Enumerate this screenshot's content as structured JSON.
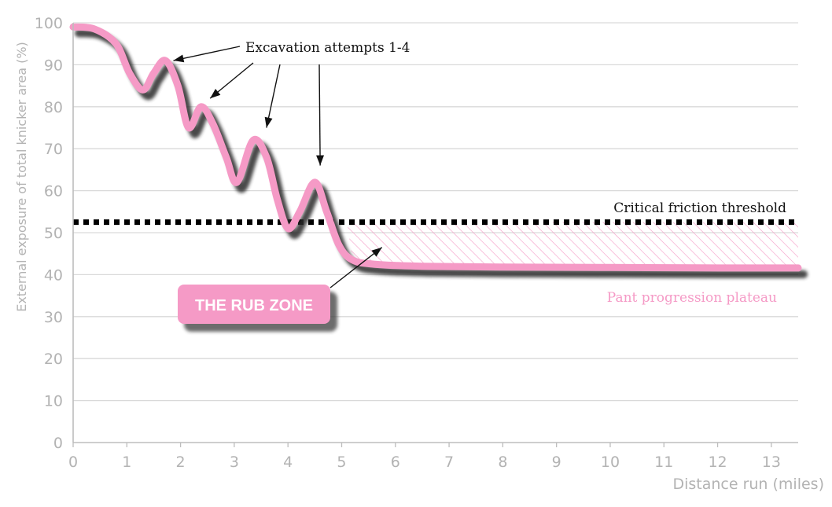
{
  "chart_data": {
    "type": "line",
    "title": "",
    "xlabel": "Distance run (miles)",
    "ylabel": "External exposure of total knicker area (%)",
    "xlim": [
      0,
      13.5
    ],
    "ylim": [
      0,
      100
    ],
    "x_ticks": [
      "0",
      "1",
      "2",
      "3",
      "4",
      "5",
      "6",
      "7",
      "8",
      "9",
      "10",
      "11",
      "12",
      "13"
    ],
    "y_ticks": [
      "0",
      "10",
      "20",
      "30",
      "40",
      "50",
      "60",
      "70",
      "80",
      "90",
      "100"
    ],
    "grid": "horizontal",
    "series": [
      {
        "color": "#f59ac6",
        "x": [
          0,
          0.4,
          0.8,
          1.05,
          1.3,
          1.5,
          1.72,
          1.95,
          2.15,
          2.38,
          2.6,
          2.85,
          3.05,
          3.35,
          3.6,
          3.8,
          4.0,
          4.22,
          4.5,
          4.72,
          4.95,
          5.2,
          5.6,
          6.5,
          8,
          10,
          12,
          13.5
        ],
        "y": [
          99,
          98.5,
          95,
          88,
          84,
          88,
          91,
          85,
          75,
          80,
          76,
          68,
          62,
          72,
          68,
          58,
          51,
          55,
          62,
          55,
          47,
          43.5,
          42.5,
          42,
          41.8,
          41.7,
          41.6,
          41.6
        ]
      }
    ],
    "threshold": {
      "label": "Critical friction threshold",
      "value": 52.5,
      "style": "dotted",
      "color": "#000000"
    },
    "plateau": {
      "label": "Pant progression plateau",
      "color": "#f59ac6"
    },
    "annotations": [
      {
        "text": "Excavation attempts 1-4",
        "targets": [
          [
            1.75,
            91
          ],
          [
            2.55,
            82
          ],
          [
            3.6,
            75
          ],
          [
            4.6,
            66
          ]
        ]
      },
      {
        "text": "THE RUB ZONE",
        "target": [
          5.75,
          46.5
        ]
      }
    ],
    "rub_zone": {
      "x_start": 5.1,
      "x_end": 13.5,
      "y_low": 42,
      "y_high": 52.5,
      "fill": "hatched pink"
    }
  }
}
